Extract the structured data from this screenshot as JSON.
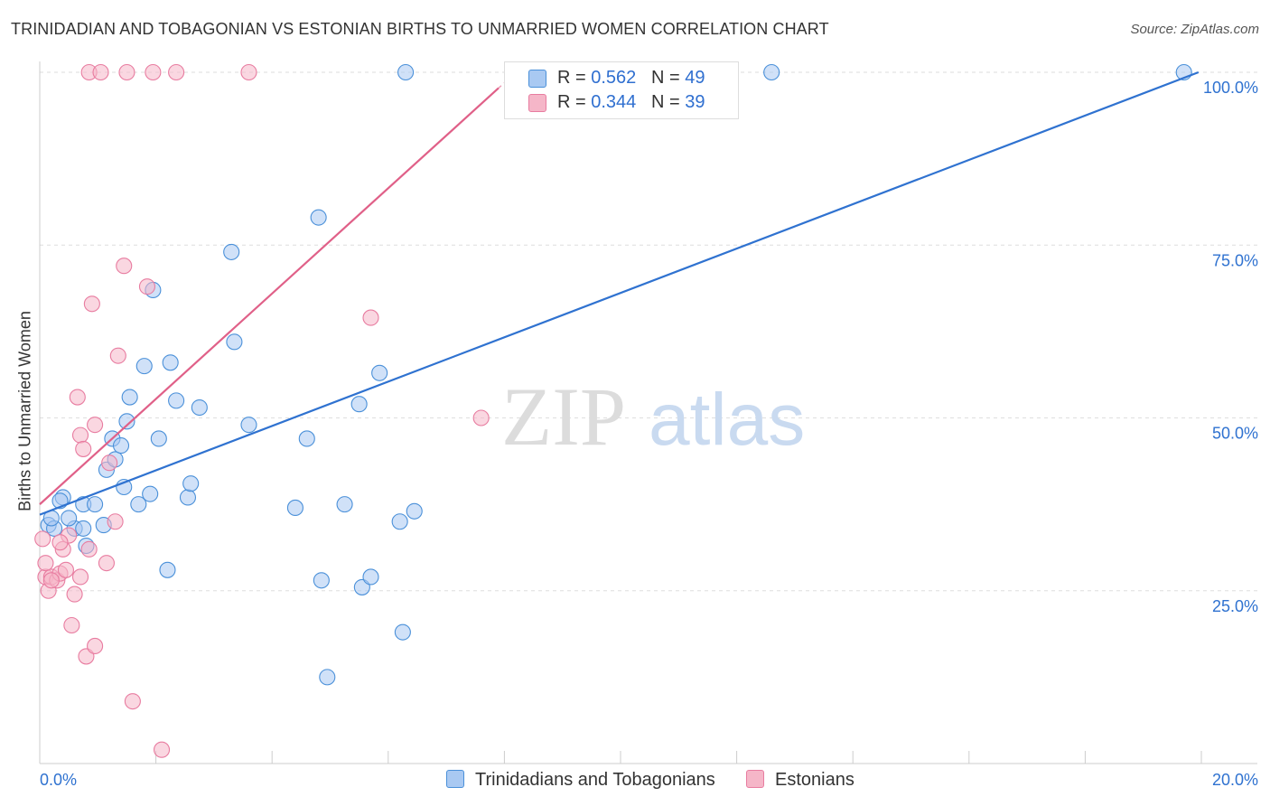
{
  "header": {
    "title": "TRINIDADIAN AND TOBAGONIAN VS ESTONIAN BIRTHS TO UNMARRIED WOMEN CORRELATION CHART",
    "source": "Source: ZipAtlas.com"
  },
  "watermark": {
    "part1": "ZIP",
    "part2": "atlas"
  },
  "legend": {
    "rows": [
      {
        "r_label": "R = ",
        "r_value": "0.562",
        "n_label": "N = ",
        "n_value": "49",
        "color": "#a9c9f2"
      },
      {
        "r_label": "R = ",
        "r_value": "0.344",
        "n_label": "N = ",
        "n_value": "39",
        "color": "#f5b6c8"
      }
    ]
  },
  "bottom_legend": {
    "series1": "Trinidadians and Tobagonians",
    "series2": "Estonians"
  },
  "chart_data": {
    "type": "scatter",
    "title": "TRINIDADIAN AND TOBAGONIAN VS ESTONIAN BIRTHS TO UNMARRIED WOMEN CORRELATION CHART",
    "xlabel": "",
    "ylabel": "Births to Unmarried Women",
    "xlim": [
      0,
      20
    ],
    "ylim": [
      0,
      100
    ],
    "x_tick_labels": [
      "0.0%",
      "20.0%"
    ],
    "y_tick_labels": [
      "25.0%",
      "50.0%",
      "75.0%",
      "100.0%"
    ],
    "y_ticks": [
      25,
      50,
      75,
      100
    ],
    "grid": true,
    "legend_position": "top-center",
    "series": [
      {
        "name": "Trinidadians and Tobagonians",
        "color": "#4a90d9",
        "fill": "#a9c9f2",
        "trend": {
          "x": [
            0,
            19.95
          ],
          "y": [
            36.0,
            100.0
          ],
          "color": "#2f72d0"
        },
        "points": [
          {
            "x": 0.15,
            "y": 34.5
          },
          {
            "x": 0.25,
            "y": 34.0
          },
          {
            "x": 0.4,
            "y": 38.5
          },
          {
            "x": 0.35,
            "y": 38.0
          },
          {
            "x": 0.6,
            "y": 34.0
          },
          {
            "x": 0.75,
            "y": 34.0
          },
          {
            "x": 0.8,
            "y": 31.5
          },
          {
            "x": 0.75,
            "y": 37.5
          },
          {
            "x": 0.95,
            "y": 37.5
          },
          {
            "x": 1.15,
            "y": 42.5
          },
          {
            "x": 1.25,
            "y": 47.0
          },
          {
            "x": 1.3,
            "y": 44.0
          },
          {
            "x": 1.4,
            "y": 46.0
          },
          {
            "x": 1.45,
            "y": 40.0
          },
          {
            "x": 1.5,
            "y": 49.5
          },
          {
            "x": 1.55,
            "y": 53.0
          },
          {
            "x": 1.7,
            "y": 37.5
          },
          {
            "x": 1.8,
            "y": 57.5
          },
          {
            "x": 1.9,
            "y": 39.0
          },
          {
            "x": 1.95,
            "y": 68.5
          },
          {
            "x": 2.05,
            "y": 47.0
          },
          {
            "x": 2.2,
            "y": 28.0
          },
          {
            "x": 2.25,
            "y": 58.0
          },
          {
            "x": 2.35,
            "y": 52.5
          },
          {
            "x": 2.55,
            "y": 38.5
          },
          {
            "x": 2.6,
            "y": 40.5
          },
          {
            "x": 2.75,
            "y": 51.5
          },
          {
            "x": 3.3,
            "y": 74.0
          },
          {
            "x": 3.35,
            "y": 61.0
          },
          {
            "x": 3.6,
            "y": 49.0
          },
          {
            "x": 4.4,
            "y": 37.0
          },
          {
            "x": 4.6,
            "y": 47.0
          },
          {
            "x": 4.8,
            "y": 79.0
          },
          {
            "x": 4.85,
            "y": 26.5
          },
          {
            "x": 4.95,
            "y": 12.5
          },
          {
            "x": 5.25,
            "y": 37.5
          },
          {
            "x": 5.5,
            "y": 52.0
          },
          {
            "x": 5.55,
            "y": 25.5
          },
          {
            "x": 5.7,
            "y": 27.0
          },
          {
            "x": 5.85,
            "y": 56.5
          },
          {
            "x": 6.2,
            "y": 35.0
          },
          {
            "x": 6.25,
            "y": 19.0
          },
          {
            "x": 6.45,
            "y": 36.5
          },
          {
            "x": 6.3,
            "y": 100
          },
          {
            "x": 12.6,
            "y": 100
          },
          {
            "x": 19.7,
            "y": 100
          },
          {
            "x": 0.5,
            "y": 35.5
          },
          {
            "x": 1.1,
            "y": 34.5
          },
          {
            "x": 0.2,
            "y": 35.5
          }
        ]
      },
      {
        "name": "Estonians",
        "color": "#e87ca0",
        "fill": "#f5b6c8",
        "trend": {
          "x": [
            0,
            8.2
          ],
          "y": [
            37.5,
            100.0
          ],
          "color": "#e06088"
        },
        "points": [
          {
            "x": 0.05,
            "y": 32.5
          },
          {
            "x": 0.1,
            "y": 27.0
          },
          {
            "x": 0.15,
            "y": 25.0
          },
          {
            "x": 0.2,
            "y": 27.0
          },
          {
            "x": 0.3,
            "y": 26.5
          },
          {
            "x": 0.35,
            "y": 27.5
          },
          {
            "x": 0.4,
            "y": 31.0
          },
          {
            "x": 0.45,
            "y": 28.0
          },
          {
            "x": 0.5,
            "y": 33.0
          },
          {
            "x": 0.55,
            "y": 20.0
          },
          {
            "x": 0.6,
            "y": 24.5
          },
          {
            "x": 0.65,
            "y": 53.0
          },
          {
            "x": 0.7,
            "y": 47.5
          },
          {
            "x": 0.7,
            "y": 27.0
          },
          {
            "x": 0.75,
            "y": 45.5
          },
          {
            "x": 0.8,
            "y": 15.5
          },
          {
            "x": 0.85,
            "y": 31.0
          },
          {
            "x": 0.9,
            "y": 66.5
          },
          {
            "x": 0.95,
            "y": 49.0
          },
          {
            "x": 0.95,
            "y": 17.0
          },
          {
            "x": 1.15,
            "y": 29.0
          },
          {
            "x": 1.2,
            "y": 43.5
          },
          {
            "x": 1.3,
            "y": 35.0
          },
          {
            "x": 1.35,
            "y": 59.0
          },
          {
            "x": 1.45,
            "y": 72.0
          },
          {
            "x": 1.6,
            "y": 9.0
          },
          {
            "x": 1.85,
            "y": 69.0
          },
          {
            "x": 2.1,
            "y": 2.0
          },
          {
            "x": 0.85,
            "y": 100
          },
          {
            "x": 1.05,
            "y": 100
          },
          {
            "x": 1.5,
            "y": 100
          },
          {
            "x": 1.95,
            "y": 100
          },
          {
            "x": 2.35,
            "y": 100
          },
          {
            "x": 3.6,
            "y": 100
          },
          {
            "x": 5.7,
            "y": 64.5
          },
          {
            "x": 7.6,
            "y": 50.0
          },
          {
            "x": 0.2,
            "y": 26.5
          },
          {
            "x": 0.1,
            "y": 29.0
          },
          {
            "x": 0.35,
            "y": 32.0
          }
        ]
      }
    ]
  }
}
